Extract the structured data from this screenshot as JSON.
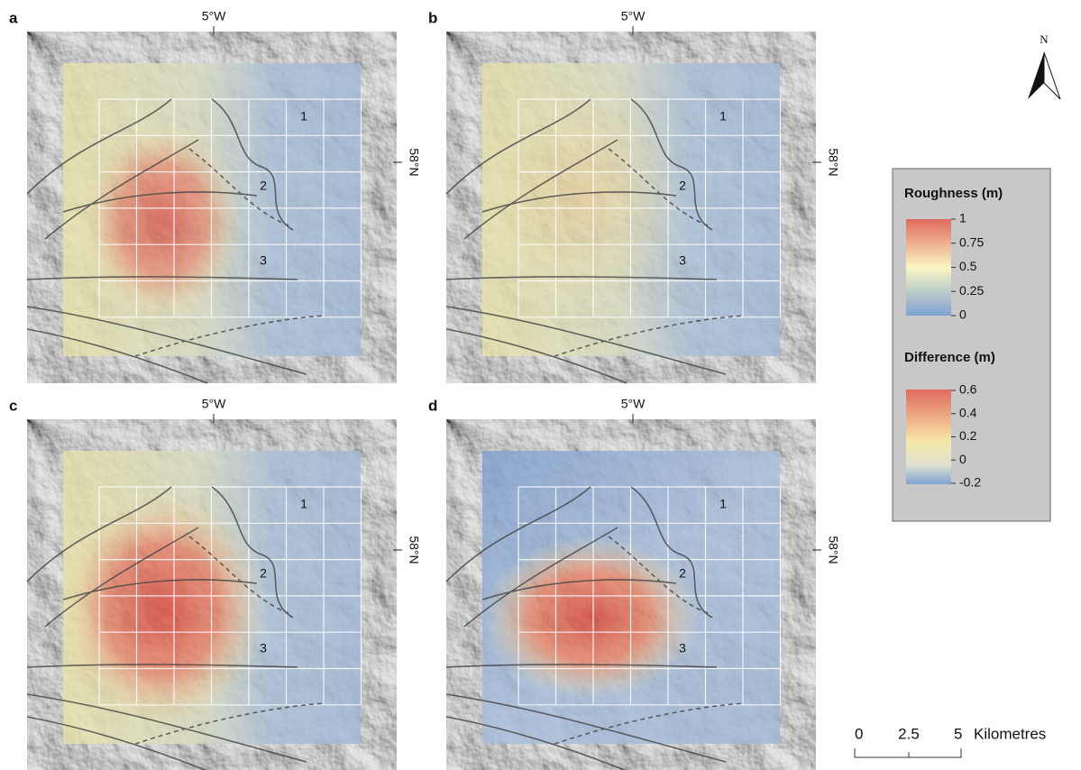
{
  "panels": [
    {
      "label": "a",
      "lon_label": "5°W",
      "lat_label": "58°N",
      "zones": [
        "1",
        "2",
        "3"
      ]
    },
    {
      "label": "b",
      "lon_label": "5°W",
      "lat_label": "58°N",
      "zones": [
        "1",
        "2",
        "3"
      ]
    },
    {
      "label": "c",
      "lon_label": "5°W",
      "lat_label": "58°N",
      "zones": [
        "1",
        "2",
        "3"
      ]
    },
    {
      "label": "d",
      "lon_label": "5°W",
      "lat_label": "58°N",
      "zones": [
        "1",
        "2",
        "3"
      ]
    }
  ],
  "north": "N",
  "legend": {
    "roughness": {
      "title": "Roughness (m)",
      "ticks": [
        "1",
        "0.75",
        "0.5",
        "0.25",
        "0"
      ]
    },
    "difference": {
      "title": "Difference (m)",
      "ticks": [
        "0.6",
        "0.4",
        "0.2",
        "0",
        "-0.2"
      ]
    }
  },
  "scale_bar": {
    "ticks": [
      "0",
      "2.5",
      "5"
    ],
    "unit": "Kilometres"
  }
}
